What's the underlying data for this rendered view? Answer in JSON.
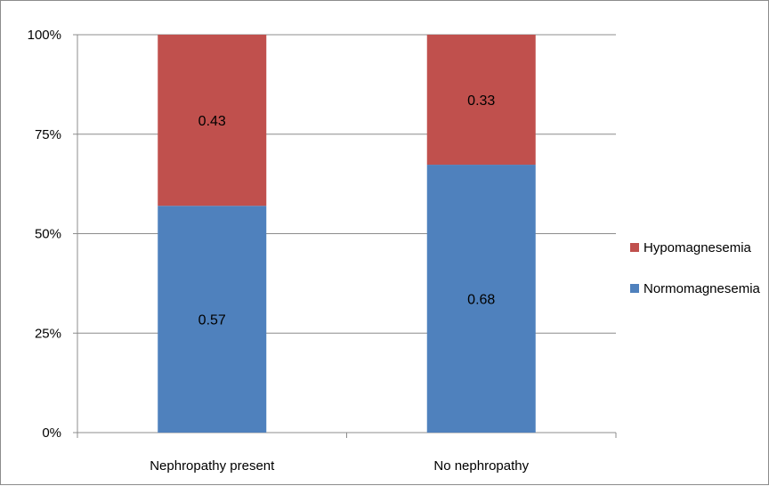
{
  "chart_data": {
    "type": "bar",
    "stacked": true,
    "percent_stacked": true,
    "categories": [
      "Nephropathy present",
      "No nephropathy"
    ],
    "series": [
      {
        "name": "Normomagnesemia",
        "values": [
          0.57,
          0.68
        ],
        "color": "#4f81bd",
        "labels": [
          "0.57",
          "0.68"
        ]
      },
      {
        "name": "Hypomagnesemia",
        "values": [
          0.43,
          0.33
        ],
        "color": "#c0504d",
        "labels": [
          "0.43",
          "0.33"
        ]
      }
    ],
    "y_ticks": [
      "0%",
      "25%",
      "50%",
      "75%",
      "100%"
    ],
    "ylim": [
      0,
      1
    ],
    "grid": true,
    "legend_position": "right",
    "legend_order": [
      "Hypomagnesemia",
      "Normomagnesemia"
    ]
  }
}
